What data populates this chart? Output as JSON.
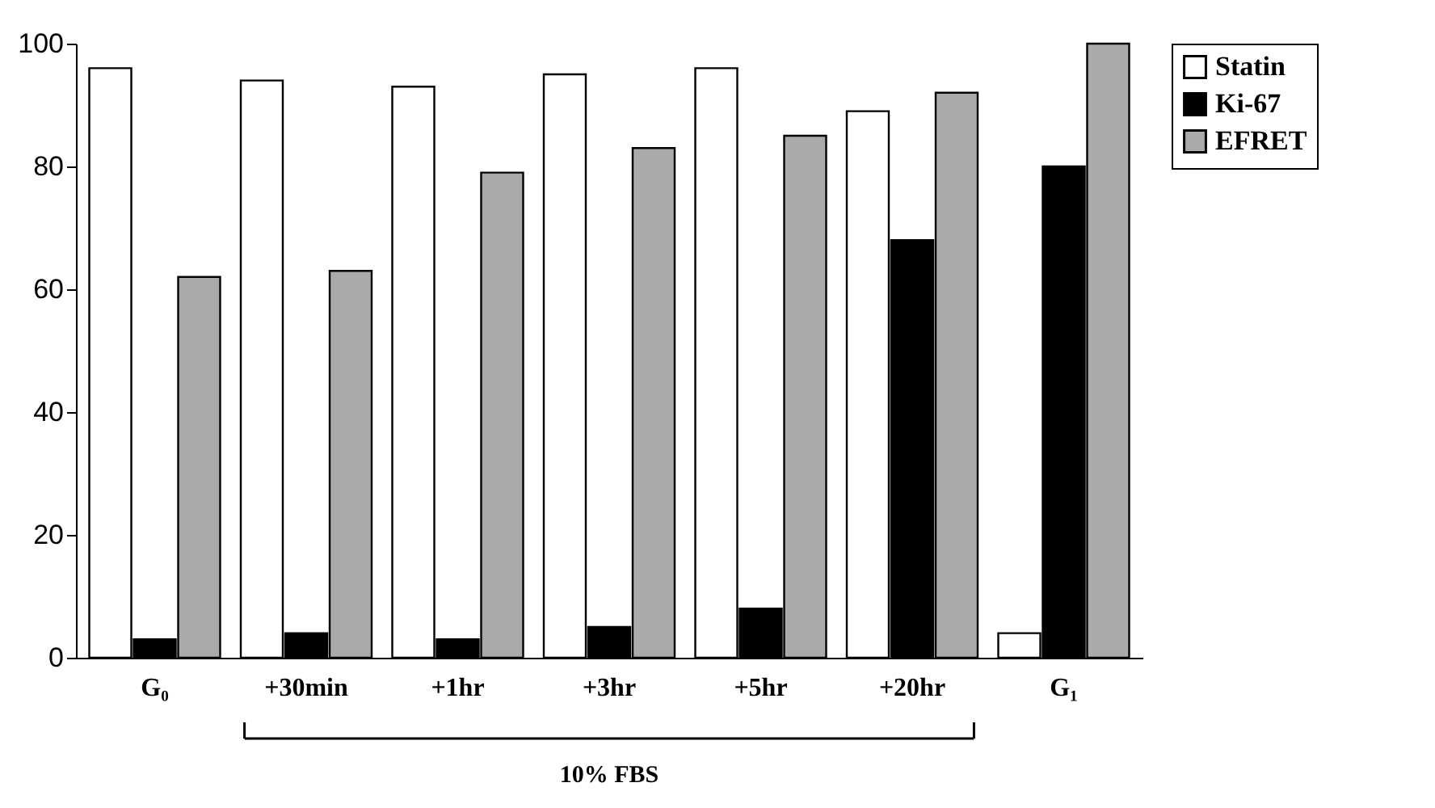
{
  "chart_data": {
    "type": "bar",
    "categories": [
      "G₀",
      "+30min",
      "+1hr",
      "+3hr",
      "+5hr",
      "+20hr",
      "G₁"
    ],
    "series": [
      {
        "name": "Statin",
        "color": "#ffffff",
        "values": [
          96,
          94,
          93,
          95,
          96,
          89,
          4
        ]
      },
      {
        "name": "Ki-67",
        "color": "#000000",
        "values": [
          3,
          4,
          3,
          5,
          8,
          68,
          80
        ]
      },
      {
        "name": "EFRET",
        "color": "#aaaaaa",
        "values": [
          62,
          63,
          79,
          83,
          85,
          92,
          100
        ]
      }
    ],
    "ylim": [
      0,
      100
    ],
    "yticks": [
      0,
      20,
      40,
      60,
      80,
      100
    ],
    "grid": false,
    "legend": "right",
    "annotations": [
      "10% FBS"
    ]
  }
}
